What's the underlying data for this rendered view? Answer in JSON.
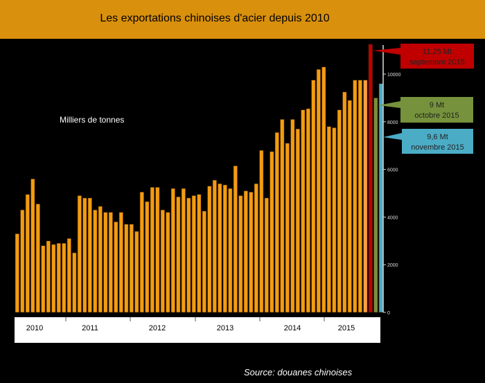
{
  "chart_data": {
    "type": "bar",
    "title": "Les exportations chinoises d'acier depuis 2010",
    "ylabel": "Milliers de tonnes",
    "source": "Source: douanes chinoises",
    "ylim": [
      0,
      11250
    ],
    "yticks": [
      0,
      2000,
      4000,
      6000,
      8000,
      10000
    ],
    "grid": false,
    "year_labels": [
      "2010",
      "2011",
      "2012",
      "2013",
      "2014",
      "2015"
    ],
    "values": [
      3300,
      4300,
      4950,
      5600,
      4550,
      2800,
      3000,
      2850,
      2900,
      2900,
      3100,
      2500,
      4900,
      4800,
      4800,
      4300,
      4450,
      4200,
      4200,
      3800,
      4200,
      3700,
      3700,
      3400,
      5050,
      4650,
      5250,
      5250,
      4300,
      4200,
      5200,
      4850,
      5200,
      4800,
      4900,
      4950,
      4250,
      5300,
      5550,
      5400,
      5350,
      5200,
      6150,
      4900,
      5100,
      5050,
      5400,
      6800,
      4800,
      6750,
      7550,
      8100,
      7100,
      8100,
      7700,
      8500,
      8550,
      9750,
      10200,
      10300,
      7800,
      7750,
      8500,
      9250,
      8900,
      9750,
      9750,
      9750,
      11250,
      9000,
      9600
    ],
    "colors": {
      "bar": "#f39c12",
      "last_orange": "#ff9f40",
      "september": "#c00000",
      "october": "#76923c",
      "november": "#4bacc6",
      "title_bar": "#d9900c"
    },
    "callouts": [
      {
        "value": "11,25 Mt",
        "month": "septembre 2015",
        "color": "#c00000"
      },
      {
        "value": "9 Mt",
        "month": "octobre 2015",
        "color": "#76923c"
      },
      {
        "value": "9,6 Mt",
        "month": "novembre  2015",
        "color": "#4bacc6"
      }
    ]
  }
}
